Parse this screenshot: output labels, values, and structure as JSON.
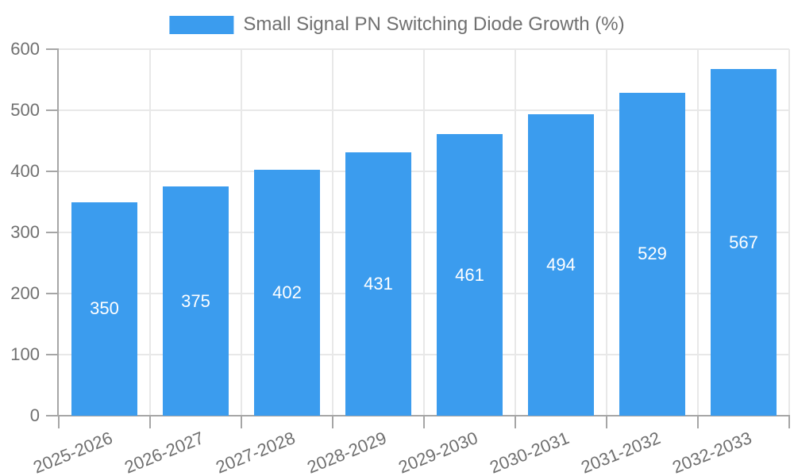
{
  "legend": {
    "label": "Small Signal PN Switching Diode Growth (%)"
  },
  "chart_data": {
    "type": "bar",
    "series_name": "Small Signal PN Switching Diode Growth (%)",
    "categories": [
      "2025-2026",
      "2026-2027",
      "2027-2028",
      "2028-2029",
      "2029-2030",
      "2030-2031",
      "2031-2032",
      "2032-2033"
    ],
    "values": [
      350,
      375,
      402,
      431,
      461,
      494,
      529,
      567
    ],
    "yticks": [
      0,
      100,
      200,
      300,
      400,
      500,
      600
    ],
    "ylim": [
      0,
      600
    ],
    "xlabel": "",
    "ylabel": "",
    "grid": true,
    "legend_position": "top-center",
    "colors": {
      "bar": "#3B9CEE",
      "grid": "#e8e8e8",
      "axis": "#a6a6a6",
      "text": "#707070",
      "value_label": "#ffffff",
      "background": "#ffffff"
    }
  }
}
